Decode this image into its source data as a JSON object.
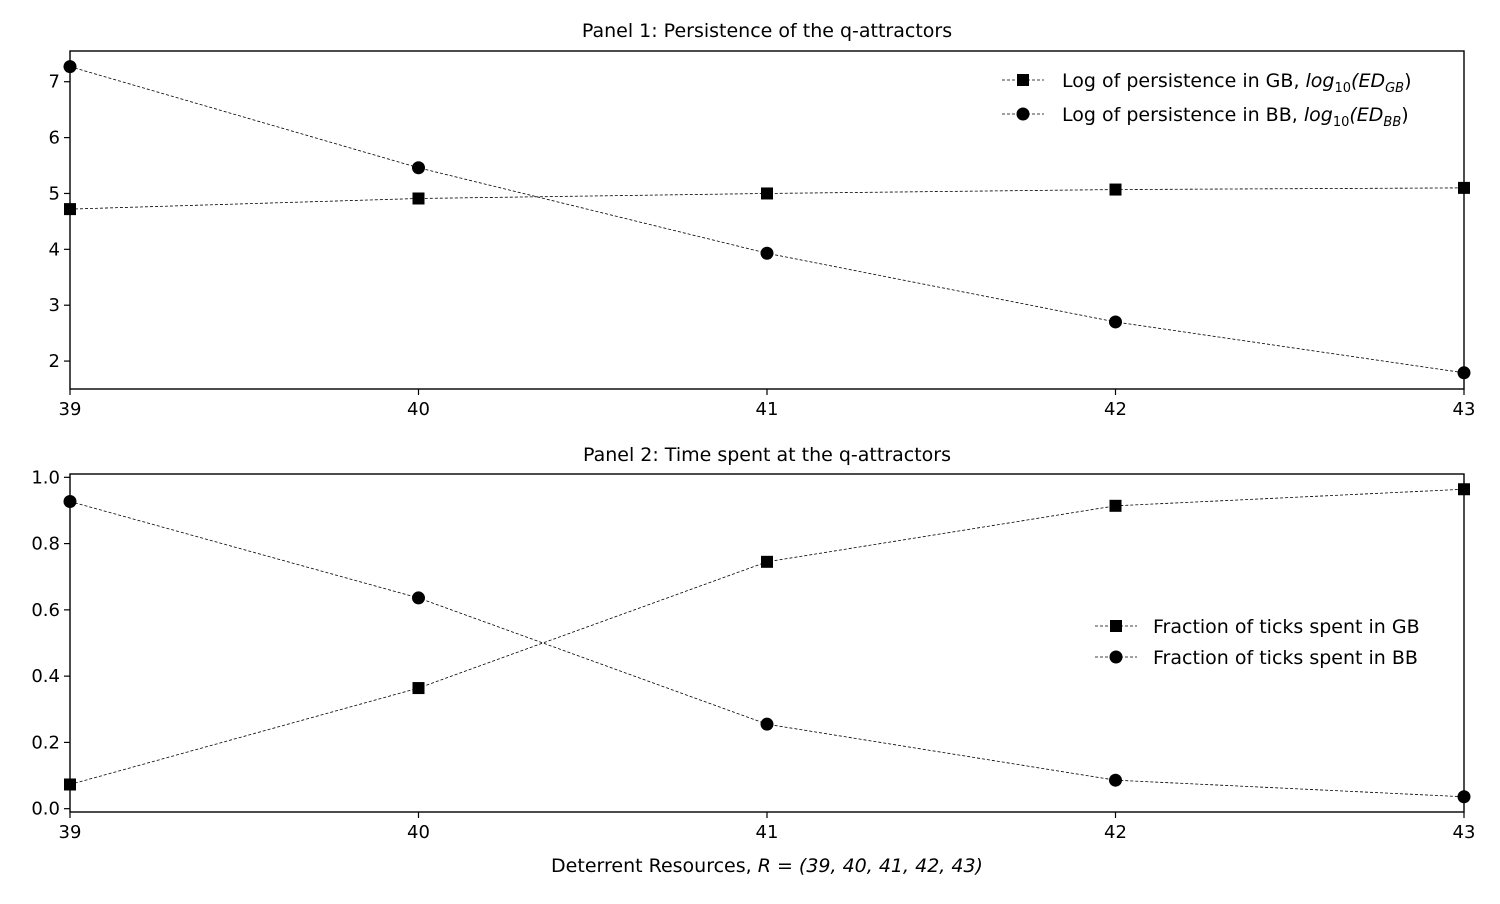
{
  "figure": {
    "xlabel_text": "Deterrent Resources, ",
    "xlabel_math": "R = (39, 40, 41, 42, 43)"
  },
  "chart_data": [
    {
      "type": "line",
      "title": "Panel 1: Persistence of the q-attractors",
      "x": [
        39,
        40,
        41,
        42,
        43
      ],
      "xlim": [
        39,
        43
      ],
      "ylim": [
        1.5,
        7.55
      ],
      "xticks": [
        39,
        40,
        41,
        42,
        43
      ],
      "yticks": [
        2,
        3,
        4,
        5,
        6,
        7
      ],
      "grid": false,
      "legend_position": "top-right",
      "series": [
        {
          "name": "Log of persistence in GB, log10(EDGB)",
          "label_prefix": "Log of persistence in GB, ",
          "label_math": "log",
          "label_math_sub": "10",
          "label_math_paren": "(ED",
          "label_math_sub2": "GB",
          "label_math_close": ")",
          "marker": "square",
          "values": [
            4.72,
            4.91,
            5.0,
            5.07,
            5.1
          ]
        },
        {
          "name": "Log of persistence in BB, log10(EDBB)",
          "label_prefix": "Log of persistence in BB, ",
          "label_math": "log",
          "label_math_sub": "10",
          "label_math_paren": "(ED",
          "label_math_sub2": "BB",
          "label_math_close": ")",
          "marker": "circle",
          "values": [
            7.27,
            5.46,
            3.93,
            2.7,
            1.79
          ]
        }
      ]
    },
    {
      "type": "line",
      "title": "Panel 2: Time spent at the q-attractors",
      "x": [
        39,
        40,
        41,
        42,
        43
      ],
      "xlim": [
        39,
        43
      ],
      "ylim": [
        -0.01,
        1.01
      ],
      "xticks": [
        39,
        40,
        41,
        42,
        43
      ],
      "yticks": [
        0.0,
        0.2,
        0.4,
        0.6,
        0.8,
        1.0
      ],
      "ytick_labels": [
        "0.0",
        "0.2",
        "0.4",
        "0.6",
        "0.8",
        "1.0"
      ],
      "grid": false,
      "legend_position": "center-right",
      "series": [
        {
          "name": "Fraction of ticks spent in GB",
          "marker": "square",
          "values": [
            0.073,
            0.364,
            0.745,
            0.914,
            0.964
          ]
        },
        {
          "name": "Fraction of ticks spent in BB",
          "marker": "circle",
          "values": [
            0.927,
            0.636,
            0.255,
            0.086,
            0.036
          ]
        }
      ]
    }
  ]
}
